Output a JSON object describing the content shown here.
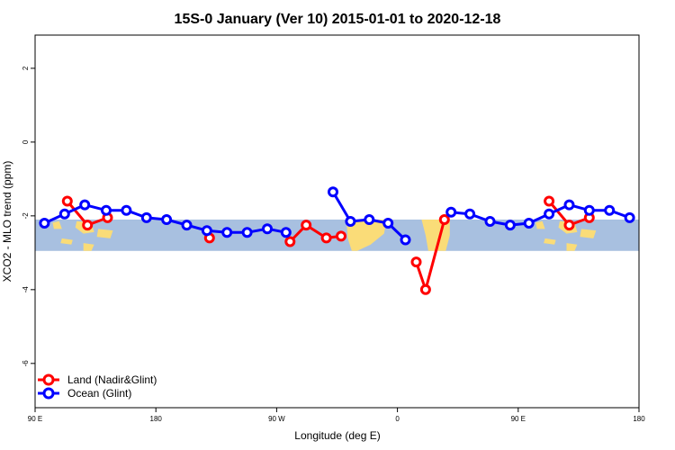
{
  "chart_data": {
    "type": "line",
    "title": "15S-0 January (Ver 10)   2015-01-01 to 2020-12-18",
    "xlabel": "Longitude (deg E)",
    "ylabel": "XCO2 - MLO trend (ppm)",
    "xlim": [
      90,
      540
    ],
    "ylim": [
      -7.2,
      2.9
    ],
    "x_ticks": [
      {
        "value": 90,
        "label": "90 E"
      },
      {
        "value": 180,
        "label": "180"
      },
      {
        "value": 270,
        "label": "90 W"
      },
      {
        "value": 360,
        "label": "0"
      },
      {
        "value": 450,
        "label": "90 E"
      },
      {
        "value": 540,
        "label": "180"
      }
    ],
    "y_ticks": [
      {
        "value": 2,
        "label": "2"
      },
      {
        "value": 0,
        "label": "0"
      },
      {
        "value": -2,
        "label": "-2"
      },
      {
        "value": -4,
        "label": "-4"
      },
      {
        "value": -6,
        "label": "-6"
      }
    ],
    "map_band": {
      "lat_range": [
        "15S",
        "0"
      ],
      "y_range": [
        -2.95,
        -2.1
      ],
      "ocean_color": "#a8c0e0",
      "land_color": "#fadc78"
    },
    "series": [
      {
        "name": "Land (Nadir&Glint)",
        "color": "#ff0000",
        "segments": [
          [
            [
              114,
              -1.6
            ],
            [
              129,
              -2.25
            ],
            [
              144,
              -2.05
            ]
          ],
          [
            [
              220,
              -2.6
            ]
          ],
          [
            [
              280,
              -2.7
            ],
            [
              292,
              -2.25
            ],
            [
              307,
              -2.6
            ],
            [
              318,
              -2.55
            ]
          ],
          [
            [
              374,
              -3.25
            ],
            [
              381,
              -4.0
            ],
            [
              395,
              -2.1
            ]
          ],
          [
            [
              473,
              -1.6
            ],
            [
              488,
              -2.25
            ],
            [
              503,
              -2.05
            ]
          ]
        ]
      },
      {
        "name": "Ocean (Glint)",
        "color": "#0000ff",
        "segments": [
          [
            [
              97,
              -2.2
            ],
            [
              112,
              -1.95
            ],
            [
              127,
              -1.7
            ],
            [
              143,
              -1.85
            ],
            [
              158,
              -1.85
            ],
            [
              173,
              -2.05
            ],
            [
              188,
              -2.1
            ],
            [
              203,
              -2.25
            ],
            [
              218,
              -2.4
            ],
            [
              233,
              -2.45
            ],
            [
              248,
              -2.45
            ],
            [
              263,
              -2.35
            ],
            [
              277,
              -2.45
            ]
          ],
          [
            [
              312,
              -1.35
            ],
            [
              325,
              -2.15
            ],
            [
              339,
              -2.1
            ],
            [
              353,
              -2.2
            ],
            [
              366,
              -2.65
            ]
          ],
          [
            [
              400,
              -1.9
            ],
            [
              414,
              -1.95
            ],
            [
              429,
              -2.15
            ],
            [
              444,
              -2.25
            ],
            [
              458,
              -2.2
            ],
            [
              473,
              -1.95
            ],
            [
              488,
              -1.7
            ],
            [
              503,
              -1.85
            ],
            [
              518,
              -1.85
            ],
            [
              533,
              -2.05
            ]
          ]
        ]
      }
    ],
    "legend": {
      "position": "bottom-left"
    }
  }
}
